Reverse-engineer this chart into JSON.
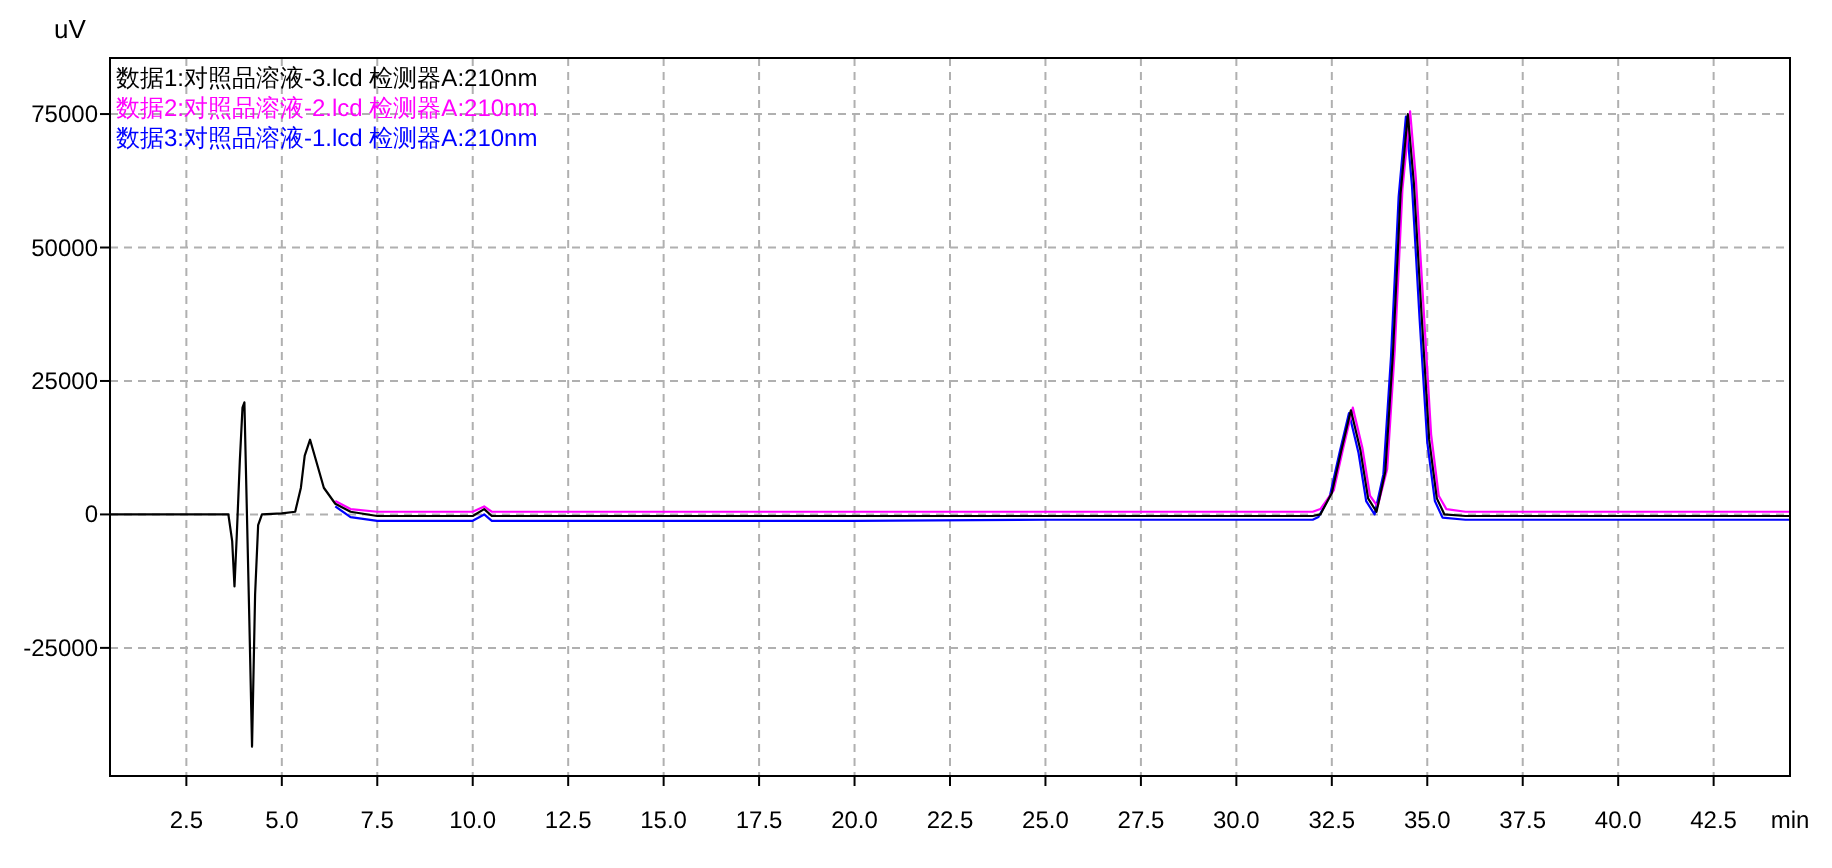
{
  "chart_data": {
    "type": "line",
    "xlabel": "min",
    "ylabel": "uV",
    "xlim": [
      0.5,
      44.5
    ],
    "ylim": [
      -49000,
      85500
    ],
    "xticks": [
      2.5,
      {
        "value": 5,
        "label": "5.0"
      },
      7.5,
      {
        "value": 10,
        "label": "10.0"
      },
      12.5,
      {
        "value": 15,
        "label": "15.0"
      },
      17.5,
      {
        "value": 20,
        "label": "20.0"
      },
      22.5,
      {
        "value": 25,
        "label": "25.0"
      },
      27.5,
      {
        "value": 30,
        "label": "30.0"
      },
      32.5,
      {
        "value": 35,
        "label": "35.0"
      },
      37.5,
      {
        "value": 40,
        "label": "40.0"
      },
      42.5
    ],
    "yticks": [
      -25000,
      0,
      25000,
      50000,
      75000
    ],
    "grid": true,
    "legend": "top left",
    "line_style": "solid",
    "marker": "none",
    "x": [
      0.5,
      3.0,
      3.6,
      3.7,
      3.76,
      3.82,
      3.9,
      3.97,
      4.02,
      4.08,
      4.15,
      4.22,
      4.3,
      4.38,
      4.48,
      5.0,
      5.35,
      5.5,
      5.6,
      5.74,
      5.9,
      6.1,
      6.4,
      6.8,
      7.5,
      9.5,
      10.0,
      10.3,
      10.5,
      11,
      20,
      25,
      30,
      32.0,
      32.2,
      32.5,
      32.75,
      33.0,
      33.25,
      33.45,
      33.67,
      33.9,
      34.1,
      34.3,
      34.49,
      34.65,
      34.85,
      35.05,
      35.25,
      35.45,
      36,
      38,
      44.5
    ],
    "series": [
      {
        "name": "数据1:对照品溶液-3.lcd 检测器A:210nm",
        "color": "#000000",
        "values": [
          0,
          0,
          0,
          -5000,
          -13500,
          -4000,
          10000,
          20000,
          21000,
          2000,
          -20000,
          -43500,
          -15000,
          -2000,
          0,
          200,
          500,
          5000,
          11000,
          14000,
          10000,
          5000,
          2000,
          500,
          -300,
          -300,
          -300,
          1000,
          -300,
          -300,
          -300,
          -300,
          -300,
          -300,
          0,
          4000,
          12000,
          19500,
          12000,
          3000,
          500,
          8000,
          30000,
          60000,
          75000,
          62000,
          37500,
          14000,
          3000,
          0,
          -300,
          -300,
          -300
        ]
      },
      {
        "name": "数据2:对照品溶液-2.lcd 检测器A:210nm",
        "color": "#ff00ff",
        "x": [
          6.4,
          6.8,
          7.5,
          9.5,
          10.0,
          10.3,
          10.5,
          11,
          20,
          25,
          30,
          32.0,
          32.2,
          32.55,
          32.8,
          33.05,
          33.3,
          33.5,
          33.7,
          33.95,
          34.15,
          34.35,
          34.55,
          34.7,
          34.9,
          35.1,
          35.3,
          35.5,
          36,
          38,
          44.5
        ],
        "values": [
          2500,
          1000,
          500,
          500,
          500,
          1500,
          500,
          500,
          500,
          500,
          500,
          500,
          1000,
          4500,
          12500,
          20000,
          12500,
          3500,
          1500,
          8500,
          31000,
          61000,
          75500,
          63000,
          39000,
          15000,
          3500,
          1000,
          500,
          500,
          500
        ]
      },
      {
        "name": "数据3:对照品溶液-1.lcd 检测器A:210nm",
        "color": "#0000ff",
        "x": [
          6.4,
          6.8,
          7.5,
          9.5,
          10.0,
          10.3,
          10.5,
          11,
          20,
          25,
          30,
          32.0,
          32.15,
          32.45,
          32.7,
          32.95,
          33.2,
          33.4,
          33.62,
          33.85,
          34.05,
          34.25,
          34.44,
          34.6,
          34.8,
          35.0,
          35.2,
          35.4,
          36,
          38,
          44.5
        ],
        "values": [
          1500,
          -500,
          -1200,
          -1200,
          -1200,
          0,
          -1200,
          -1200,
          -1200,
          -1000,
          -1000,
          -1000,
          -500,
          3500,
          11500,
          19000,
          11500,
          2500,
          0,
          7500,
          29500,
          59500,
          74500,
          61500,
          36500,
          13500,
          2500,
          -600,
          -1000,
          -1000,
          -1000
        ]
      }
    ]
  }
}
